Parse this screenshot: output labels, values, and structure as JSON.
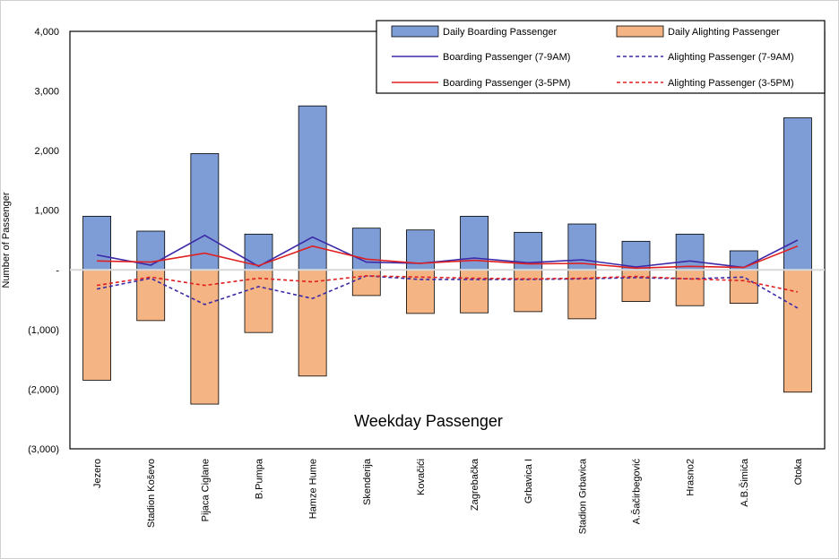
{
  "chart_data": {
    "type": "bar",
    "title": "Weekday Passenger",
    "xlabel": "",
    "ylabel": "Number of Passenger",
    "ylim": [
      -3000,
      4000
    ],
    "yticks": [
      -3000,
      -2000,
      -1000,
      0,
      1000,
      2000,
      3000,
      4000
    ],
    "ytick_labels": [
      "(3,000)",
      "(2,000)",
      "(1,000)",
      "-",
      "1,000",
      "2,000",
      "3,000",
      "4,000"
    ],
    "legend_position": "top-right",
    "categories": [
      "Jezero",
      "Stadion Koševo",
      "Pijaca Ciglane",
      "B.Pumpa",
      "Hamze Hume",
      "Skenderija",
      "Kovačići",
      "Zagrebačka",
      "Grbavica I",
      "Stadion Grbavica",
      "A.Šačirbegović",
      "Hrasno2",
      "A.B.Šimića",
      "Otoka"
    ],
    "series": [
      {
        "name": "Daily Boarding Passenger",
        "kind": "bar",
        "color": "#7e9dd6",
        "edge": "#000000",
        "values": [
          900,
          650,
          1950,
          600,
          2750,
          700,
          670,
          900,
          630,
          770,
          480,
          600,
          320,
          2550
        ]
      },
      {
        "name": "Daily Alighting Passenger",
        "kind": "bar",
        "color": "#f5b483",
        "edge": "#000000",
        "values": [
          -1850,
          -850,
          -2250,
          -1050,
          -1780,
          -430,
          -730,
          -720,
          -700,
          -820,
          -530,
          -600,
          -560,
          -2050
        ]
      },
      {
        "name": "Boarding Passenger (7-9AM)",
        "kind": "line",
        "style": "solid",
        "color": "#3b2aa8",
        "values": [
          250,
          80,
          580,
          60,
          550,
          130,
          110,
          200,
          120,
          170,
          50,
          150,
          40,
          500
        ]
      },
      {
        "name": "Alighting Passenger (7-9AM)",
        "kind": "line",
        "style": "dashed",
        "color": "#3b2aa8",
        "values": [
          -320,
          -140,
          -580,
          -280,
          -480,
          -100,
          -160,
          -160,
          -160,
          -150,
          -130,
          -150,
          -120,
          -640
        ]
      },
      {
        "name": "Boarding Passenger (3-5PM)",
        "kind": "line",
        "style": "solid",
        "color": "#e02020",
        "values": [
          150,
          130,
          280,
          70,
          400,
          180,
          110,
          160,
          100,
          110,
          30,
          60,
          40,
          400
        ]
      },
      {
        "name": "Alighting Passenger (3-5PM)",
        "kind": "line",
        "style": "dashed",
        "color": "#e02020",
        "values": [
          -260,
          -120,
          -260,
          -140,
          -200,
          -100,
          -120,
          -140,
          -150,
          -140,
          -110,
          -150,
          -180,
          -370
        ]
      }
    ]
  }
}
